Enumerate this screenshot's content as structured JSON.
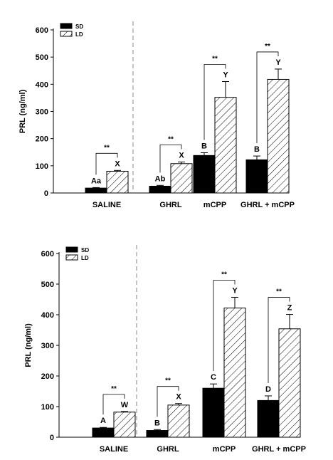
{
  "chart_data": [
    {
      "type": "bar",
      "ylabel": "PRL (ng/ml)",
      "ylim": [
        0,
        600
      ],
      "yticks": [
        0,
        100,
        200,
        300,
        400,
        500,
        600
      ],
      "categories": [
        "SALINE",
        "GHRL",
        "mCPP",
        "GHRL + mCPP"
      ],
      "series": [
        {
          "name": "SD",
          "values": [
            18,
            25,
            138,
            122
          ],
          "errors": [
            2,
            3,
            10,
            14
          ],
          "color": "#000000",
          "pattern": "solid"
        },
        {
          "name": "LD",
          "values": [
            80,
            108,
            352,
            418
          ],
          "errors": [
            3,
            6,
            58,
            38
          ],
          "color": "#ffffff",
          "pattern": "hatch"
        }
      ],
      "sd_labels": [
        "Aa",
        "Ab",
        "B",
        "B"
      ],
      "ld_labels": [
        "X",
        "X",
        "Y",
        "Y"
      ],
      "significance": [
        "**",
        "**",
        "**",
        "**"
      ],
      "legend_position": "top-left",
      "grid": false
    },
    {
      "type": "bar",
      "ylabel": "PRL (ng/ml)",
      "ylim": [
        0,
        600
      ],
      "yticks": [
        0,
        100,
        200,
        300,
        400,
        500,
        600
      ],
      "categories": [
        "SALINE",
        "GHRL",
        "mCPP",
        "GHRL + mCPP"
      ],
      "series": [
        {
          "name": "SD",
          "values": [
            30,
            22,
            160,
            120
          ],
          "errors": [
            2,
            3,
            14,
            15
          ],
          "color": "#000000",
          "pattern": "solid"
        },
        {
          "name": "LD",
          "values": [
            82,
            105,
            422,
            354
          ],
          "errors": [
            2,
            5,
            35,
            47
          ],
          "color": "#ffffff",
          "pattern": "hatch"
        }
      ],
      "sd_labels": [
        "A",
        "B",
        "C",
        "D"
      ],
      "ld_labels": [
        "W",
        "X",
        "Y",
        "Z"
      ],
      "significance": [
        "**",
        "**",
        "**",
        "**"
      ],
      "legend_position": "top-left",
      "grid": false
    }
  ]
}
